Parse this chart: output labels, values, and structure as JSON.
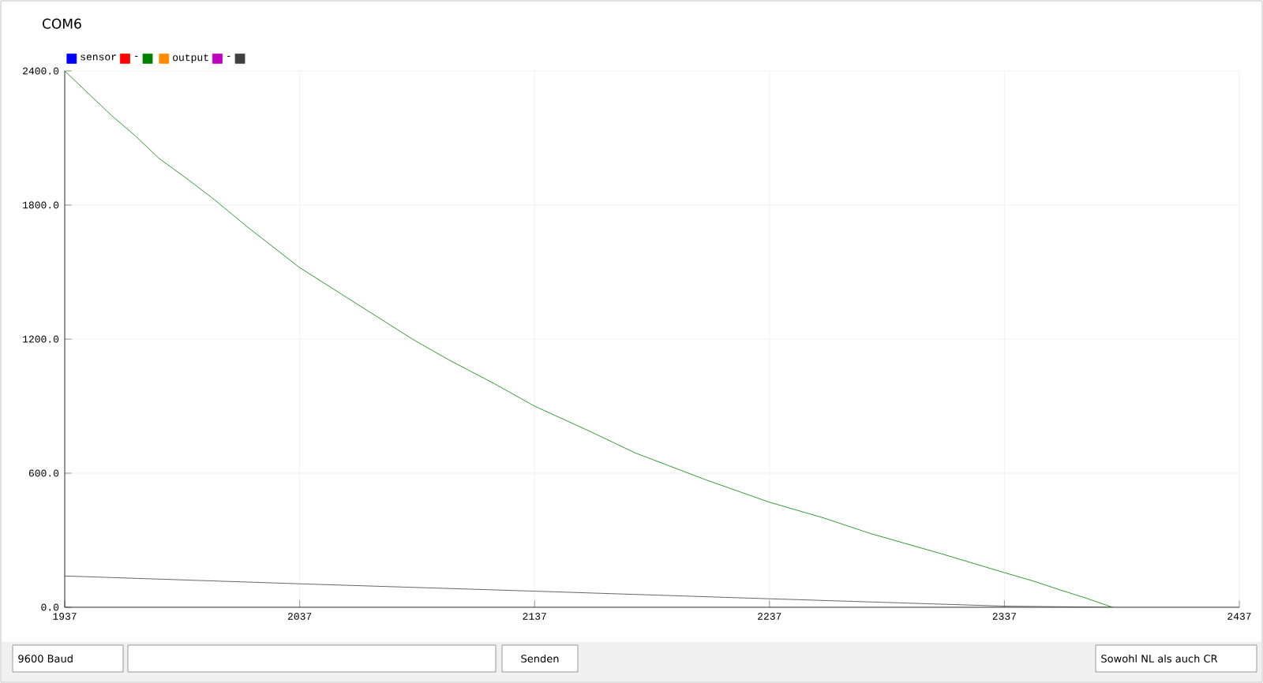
{
  "chart_data": {
    "type": "line",
    "title": "COM6",
    "xlim": [
      1937,
      2437
    ],
    "xticks": [
      1937,
      2037,
      2137,
      2237,
      2337,
      2437
    ],
    "ylim": [
      0,
      2400
    ],
    "yticks": [
      {
        "value": 0,
        "label": "0.0"
      },
      {
        "value": 600,
        "label": "600.0"
      },
      {
        "value": 1200,
        "label": "1200.0"
      },
      {
        "value": 1800,
        "label": "1800.0"
      },
      {
        "value": 2400,
        "label": "2400.0"
      }
    ],
    "grid": true,
    "legend": "top left",
    "series": [
      {
        "name": "sensor",
        "color": "#0000ff"
      },
      {
        "name": "-",
        "color": "#ff0000"
      },
      {
        "color": "#008000",
        "x": [
          1937,
          1947,
          1957,
          1967,
          1977,
          1990,
          2000,
          2015,
          2037,
          2055,
          2070,
          2085,
          2100,
          2120,
          2137,
          2160,
          2180,
          2210,
          2237,
          2260,
          2280,
          2310,
          2337,
          2350,
          2360,
          2372,
          2383
        ],
        "values": [
          2400,
          2300,
          2200,
          2110,
          2010,
          1910,
          1830,
          1700,
          1520,
          1400,
          1300,
          1200,
          1110,
          1000,
          900,
          790,
          690,
          570,
          470,
          400,
          330,
          240,
          155,
          115,
          80,
          40,
          0
        ]
      },
      {
        "name": "output",
        "color": "#ff8c00"
      },
      {
        "name": "-",
        "color": "#c000c0"
      },
      {
        "color": "#404040",
        "x": [
          1937,
          2037,
          2137,
          2237,
          2337,
          2383
        ],
        "values": [
          140,
          105,
          72,
          38,
          5,
          0
        ]
      }
    ],
    "annotations": [
      "9600 Baud",
      "Senden",
      "Sowohl NL als auch CR"
    ]
  }
}
